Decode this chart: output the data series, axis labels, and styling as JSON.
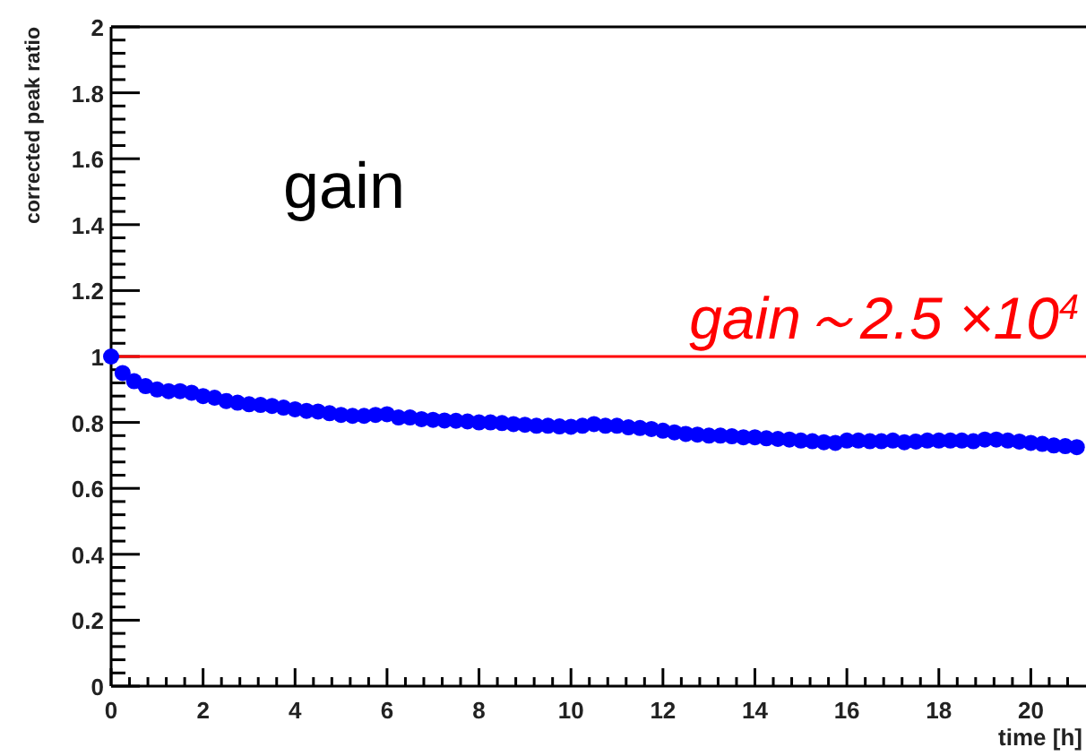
{
  "chart_data": {
    "type": "scatter",
    "ylabel": "corrected peak ratio",
    "xlabel": "time [h]",
    "annotations": [
      "gain"
    ],
    "marker": "circle",
    "grid": false,
    "xlim": [
      0,
      21.2
    ],
    "ylim": [
      0,
      2
    ],
    "xticks": [
      0,
      {
        "value": 0.4,
        "label": null
      },
      {
        "value": 0.8,
        "label": null
      },
      {
        "value": 1.2,
        "label": null
      },
      {
        "value": 1.6,
        "label": null
      },
      2,
      {
        "value": 2.4,
        "label": null
      },
      {
        "value": 2.8,
        "label": null
      },
      {
        "value": 3.2,
        "label": null
      },
      {
        "value": 3.6,
        "label": null
      },
      4,
      {
        "value": 4.4,
        "label": null
      },
      {
        "value": 4.8,
        "label": null
      },
      {
        "value": 5.2,
        "label": null
      },
      {
        "value": 5.6,
        "label": null
      },
      6,
      {
        "value": 6.4,
        "label": null
      },
      {
        "value": 6.8,
        "label": null
      },
      {
        "value": 7.2,
        "label": null
      },
      {
        "value": 7.6,
        "label": null
      },
      8,
      {
        "value": 8.4,
        "label": null
      },
      {
        "value": 8.8,
        "label": null
      },
      {
        "value": 9.2,
        "label": null
      },
      {
        "value": 9.6,
        "label": null
      },
      10,
      {
        "value": 10.4,
        "label": null
      },
      {
        "value": 10.8,
        "label": null
      },
      {
        "value": 11.2,
        "label": null
      },
      {
        "value": 11.6,
        "label": null
      },
      12,
      {
        "value": 12.4,
        "label": null
      },
      {
        "value": 12.8,
        "label": null
      },
      {
        "value": 13.2,
        "label": null
      },
      {
        "value": 13.6,
        "label": null
      },
      14,
      {
        "value": 14.4,
        "label": null
      },
      {
        "value": 14.8,
        "label": null
      },
      {
        "value": 15.2,
        "label": null
      },
      {
        "value": 15.6,
        "label": null
      },
      16,
      {
        "value": 16.4,
        "label": null
      },
      {
        "value": 16.8,
        "label": null
      },
      {
        "value": 17.2,
        "label": null
      },
      {
        "value": 17.6,
        "label": null
      },
      18,
      {
        "value": 18.4,
        "label": null
      },
      {
        "value": 18.8,
        "label": null
      },
      {
        "value": 19.2,
        "label": null
      },
      {
        "value": 19.6,
        "label": null
      },
      20,
      {
        "value": 20.4,
        "label": null
      },
      {
        "value": 20.8,
        "label": null
      }
    ],
    "yticks": [
      0,
      {
        "value": 0.04,
        "label": null
      },
      {
        "value": 0.08,
        "label": null
      },
      {
        "value": 0.12,
        "label": null
      },
      {
        "value": 0.16,
        "label": null
      },
      0.2,
      {
        "value": 0.24,
        "label": null
      },
      {
        "value": 0.28,
        "label": null
      },
      {
        "value": 0.32,
        "label": null
      },
      {
        "value": 0.36,
        "label": null
      },
      0.4,
      {
        "value": 0.44,
        "label": null
      },
      {
        "value": 0.48,
        "label": null
      },
      {
        "value": 0.52,
        "label": null
      },
      {
        "value": 0.56,
        "label": null
      },
      0.6,
      {
        "value": 0.64,
        "label": null
      },
      {
        "value": 0.68,
        "label": null
      },
      {
        "value": 0.72,
        "label": null
      },
      {
        "value": 0.76,
        "label": null
      },
      0.8,
      {
        "value": 0.84,
        "label": null
      },
      {
        "value": 0.88,
        "label": null
      },
      {
        "value": 0.92,
        "label": null
      },
      {
        "value": 0.96,
        "label": null
      },
      1,
      {
        "value": 1.04,
        "label": null
      },
      {
        "value": 1.08,
        "label": null
      },
      {
        "value": 1.12,
        "label": null
      },
      {
        "value": 1.16,
        "label": null
      },
      1.2,
      {
        "value": 1.24,
        "label": null
      },
      {
        "value": 1.28,
        "label": null
      },
      {
        "value": 1.32,
        "label": null
      },
      {
        "value": 1.36,
        "label": null
      },
      1.4,
      {
        "value": 1.44,
        "label": null
      },
      {
        "value": 1.48,
        "label": null
      },
      {
        "value": 1.52,
        "label": null
      },
      {
        "value": 1.56,
        "label": null
      },
      1.6,
      {
        "value": 1.64,
        "label": null
      },
      {
        "value": 1.68,
        "label": null
      },
      {
        "value": 1.72,
        "label": null
      },
      {
        "value": 1.76,
        "label": null
      },
      1.8,
      {
        "value": 1.84,
        "label": null
      },
      {
        "value": 1.88,
        "label": null
      },
      {
        "value": 1.92,
        "label": null
      },
      {
        "value": 1.96,
        "label": null
      },
      2
    ],
    "ref_lines": [
      {
        "axis": "y",
        "value": 1,
        "label": "gain～2.5 ×10$^{4}$",
        "color": "#ff0000"
      }
    ],
    "x": [
      0,
      0.25,
      0.5,
      0.75,
      1,
      1.25,
      1.5,
      1.75,
      2,
      2.25,
      2.5,
      2.75,
      3,
      3.25,
      3.5,
      3.75,
      4,
      4.25,
      4.5,
      4.75,
      5,
      5.25,
      5.5,
      5.75,
      6,
      6.25,
      6.5,
      6.75,
      7,
      7.25,
      7.5,
      7.75,
      8,
      8.25,
      8.5,
      8.75,
      9,
      9.25,
      9.5,
      9.75,
      10,
      10.25,
      10.5,
      10.75,
      11,
      11.25,
      11.5,
      11.75,
      12,
      12.25,
      12.5,
      12.75,
      13,
      13.25,
      13.5,
      13.75,
      14,
      14.25,
      14.5,
      14.75,
      15,
      15.25,
      15.5,
      15.75,
      16,
      16.25,
      16.5,
      16.75,
      17,
      17.25,
      17.5,
      17.75,
      18,
      18.25,
      18.5,
      18.75,
      19,
      19.25,
      19.5,
      19.75,
      20,
      20.25,
      20.5,
      20.75,
      21
    ],
    "series": [
      {
        "color": "#0000ff",
        "values": [
          1.0,
          0.95,
          0.925,
          0.91,
          0.9,
          0.895,
          0.895,
          0.89,
          0.88,
          0.875,
          0.865,
          0.86,
          0.855,
          0.853,
          0.85,
          0.845,
          0.84,
          0.835,
          0.833,
          0.828,
          0.823,
          0.82,
          0.82,
          0.823,
          0.825,
          0.815,
          0.815,
          0.81,
          0.808,
          0.806,
          0.805,
          0.803,
          0.8,
          0.8,
          0.798,
          0.795,
          0.793,
          0.79,
          0.79,
          0.788,
          0.787,
          0.79,
          0.795,
          0.79,
          0.79,
          0.785,
          0.783,
          0.78,
          0.775,
          0.77,
          0.765,
          0.763,
          0.76,
          0.76,
          0.758,
          0.755,
          0.755,
          0.752,
          0.75,
          0.748,
          0.745,
          0.743,
          0.74,
          0.738,
          0.745,
          0.745,
          0.743,
          0.743,
          0.745,
          0.74,
          0.742,
          0.745,
          0.745,
          0.745,
          0.745,
          0.743,
          0.748,
          0.748,
          0.745,
          0.742,
          0.738,
          0.735,
          0.73,
          0.728,
          0.725
        ]
      }
    ]
  }
}
